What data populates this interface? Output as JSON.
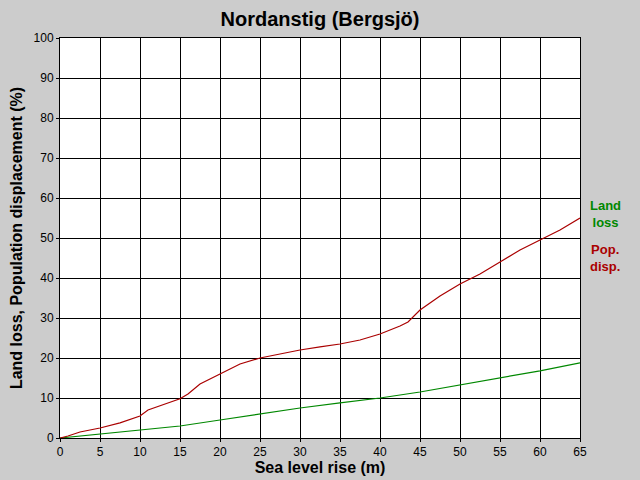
{
  "chart_data": {
    "type": "line",
    "title": "Nordanstig (Bergsjö)",
    "x_label": "Sea level rise (m)",
    "y_label": "Land loss, Population displacement (%)",
    "series": [
      {
        "name": "Land loss",
        "color": "#008800",
        "x": [
          0,
          5,
          10,
          15,
          20,
          25,
          30,
          35,
          40,
          45,
          50,
          55,
          60,
          65
        ],
        "values": [
          0,
          1,
          2,
          3,
          4.5,
          6,
          7.5,
          8.8,
          10,
          11.5,
          13.3,
          15,
          16.8,
          18.8
        ]
      },
      {
        "name": "Pop. disp.",
        "color": "#aa0000",
        "x": [
          0,
          1,
          2.5,
          5,
          7.5,
          10,
          11,
          12.5,
          15,
          16,
          17.5,
          20,
          22.5,
          25,
          27.5,
          30,
          32.5,
          35,
          37.5,
          40,
          42.5,
          43.5,
          45,
          47.5,
          50,
          52.5,
          55,
          57.5,
          60,
          62.5,
          65
        ],
        "values": [
          0,
          0.5,
          1.5,
          2.5,
          3.8,
          5.5,
          7,
          8,
          9.8,
          11,
          13.5,
          16,
          18.5,
          20,
          21,
          22,
          22.8,
          23.5,
          24.5,
          26,
          28,
          29,
          32,
          35.5,
          38.5,
          41,
          44,
          47,
          49.5,
          52,
          55
        ]
      }
    ],
    "xlim": [
      0,
      65
    ],
    "xticks": [
      0,
      5,
      10,
      15,
      20,
      25,
      30,
      35,
      40,
      45,
      50,
      55,
      60,
      65
    ],
    "ylim": [
      0,
      100
    ],
    "yticks": [
      0,
      10,
      20,
      30,
      40,
      50,
      60,
      70,
      80,
      90,
      100
    ],
    "grid": true
  }
}
